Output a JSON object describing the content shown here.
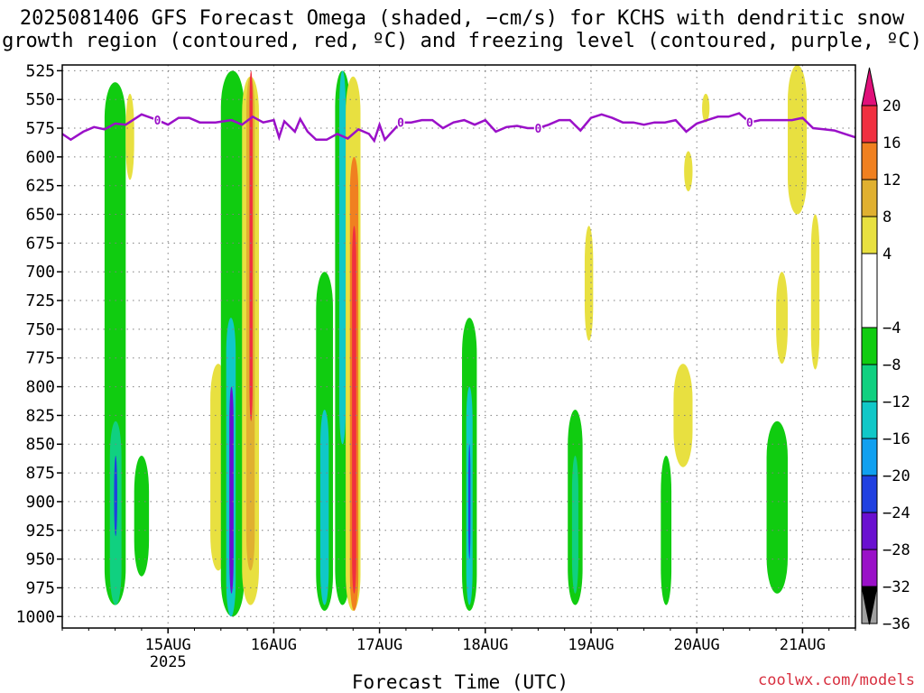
{
  "title": {
    "line1": "2025081406 GFS Forecast Omega (shaded, −cm/s) for KCHS with dendritic snow",
    "line2": "growth region (contoured, red, ºC) and freezing level (contoured, purple, ºC)"
  },
  "xlabel": "Forecast Time (UTC)",
  "credit": "coolwx.com/models",
  "colors": {
    "freezing_level": "#9a10c8",
    "ground": "#a0522d",
    "grid": "#808080"
  },
  "chart_data": {
    "type": "heatmap",
    "ylabel": "",
    "y_axis": {
      "ticks": [
        525,
        550,
        575,
        600,
        625,
        650,
        675,
        700,
        725,
        750,
        775,
        800,
        825,
        850,
        875,
        900,
        925,
        950,
        975,
        1000
      ],
      "range_hpa": [
        520,
        1010
      ],
      "inverted": true
    },
    "x_axis": {
      "range_days": [
        "2025-08-14 06Z",
        "2025-08-21 18Z"
      ],
      "ticks": [
        {
          "label": "15AUG",
          "sub": "2025",
          "t": 1.0
        },
        {
          "label": "16AUG",
          "sub": "",
          "t": 2.0
        },
        {
          "label": "17AUG",
          "sub": "",
          "t": 3.0
        },
        {
          "label": "18AUG",
          "sub": "",
          "t": 4.0
        },
        {
          "label": "19AUG",
          "sub": "",
          "t": 5.0
        },
        {
          "label": "20AUG",
          "sub": "",
          "t": 6.0
        },
        {
          "label": "21AUG",
          "sub": "",
          "t": 7.0
        }
      ],
      "t_min": 0.0,
      "t_max": 7.5
    },
    "grid": true,
    "colorbar": {
      "levels": [
        -36,
        -32,
        -28,
        -24,
        -20,
        -16,
        -12,
        -8,
        -4,
        4,
        8,
        12,
        16,
        20
      ],
      "label_levels": [
        20,
        16,
        12,
        8,
        4,
        -4,
        -8,
        -12,
        -16,
        -20,
        -24,
        -28,
        -32,
        -36
      ],
      "colors": [
        "#000000",
        "#a0a0a0",
        "#9a10c8",
        "#6a10d0",
        "#2040e0",
        "#10a0f0",
        "#10c8c8",
        "#10d080",
        "#10cc10",
        "#ffffff",
        "#e8e040",
        "#e0b030",
        "#f08020",
        "#f03040",
        "#e0107a"
      ]
    },
    "freezing_level_series": {
      "contour_label": "0",
      "t": [
        0.0,
        0.08,
        0.2,
        0.3,
        0.4,
        0.5,
        0.6,
        0.75,
        0.9,
        1.0,
        1.1,
        1.2,
        1.3,
        1.45,
        1.6,
        1.7,
        1.8,
        1.9,
        2.0,
        2.05,
        2.1,
        2.2,
        2.25,
        2.32,
        2.4,
        2.5,
        2.6,
        2.7,
        2.8,
        2.9,
        2.95,
        3.0,
        3.05,
        3.1,
        3.2,
        3.3,
        3.4,
        3.5,
        3.6,
        3.7,
        3.8,
        3.9,
        4.0,
        4.1,
        4.2,
        4.3,
        4.4,
        4.5,
        4.6,
        4.7,
        4.8,
        4.9,
        5.0,
        5.1,
        5.2,
        5.3,
        5.4,
        5.5,
        5.6,
        5.7,
        5.8,
        5.9,
        6.0,
        6.1,
        6.2,
        6.3,
        6.4,
        6.5,
        6.6,
        6.7,
        6.8,
        6.9,
        7.0,
        7.1,
        7.2,
        7.3,
        7.4,
        7.5
      ],
      "p": [
        580,
        585,
        578,
        574,
        576,
        571,
        572,
        563,
        568,
        572,
        566,
        566,
        570,
        570,
        568,
        572,
        565,
        570,
        568,
        583,
        569,
        578,
        567,
        578,
        585,
        585,
        580,
        584,
        576,
        580,
        586,
        572,
        585,
        580,
        570,
        570,
        568,
        568,
        575,
        570,
        568,
        572,
        568,
        578,
        574,
        573,
        575,
        575,
        572,
        568,
        568,
        577,
        566,
        563,
        566,
        570,
        570,
        572,
        570,
        570,
        568,
        578,
        571,
        568,
        565,
        565,
        562,
        570,
        568,
        568,
        568,
        568,
        566,
        575,
        576,
        577,
        580,
        583
      ]
    },
    "omega_cells": [
      {
        "t0": 0.4,
        "t1": 0.6,
        "p0": 535,
        "p1": 990,
        "value": -6
      },
      {
        "t0": 0.45,
        "t1": 0.56,
        "p0": 830,
        "p1": 990,
        "value": -12
      },
      {
        "t0": 0.49,
        "t1": 0.52,
        "p0": 860,
        "p1": 930,
        "value": -22
      },
      {
        "t0": 0.68,
        "t1": 0.82,
        "p0": 860,
        "p1": 965,
        "value": -6
      },
      {
        "t0": 0.6,
        "t1": 0.68,
        "p0": 545,
        "p1": 620,
        "value": 5
      },
      {
        "t0": 1.4,
        "t1": 1.55,
        "p0": 780,
        "p1": 960,
        "value": 5
      },
      {
        "t0": 1.5,
        "t1": 1.72,
        "p0": 525,
        "p1": 1000,
        "value": -8
      },
      {
        "t0": 1.55,
        "t1": 1.64,
        "p0": 740,
        "p1": 1000,
        "value": -14
      },
      {
        "t0": 1.58,
        "t1": 1.62,
        "p0": 800,
        "p1": 980,
        "value": -26
      },
      {
        "t0": 1.7,
        "t1": 1.86,
        "p0": 530,
        "p1": 990,
        "value": 5
      },
      {
        "t0": 1.74,
        "t1": 1.82,
        "p0": 530,
        "p1": 960,
        "value": 10
      },
      {
        "t0": 1.77,
        "t1": 1.8,
        "p0": 525,
        "p1": 830,
        "value": 17
      },
      {
        "t0": 2.4,
        "t1": 2.56,
        "p0": 700,
        "p1": 995,
        "value": -6
      },
      {
        "t0": 2.44,
        "t1": 2.52,
        "p0": 820,
        "p1": 990,
        "value": -14
      },
      {
        "t0": 2.58,
        "t1": 2.72,
        "p0": 525,
        "p1": 990,
        "value": -8
      },
      {
        "t0": 2.62,
        "t1": 2.68,
        "p0": 525,
        "p1": 850,
        "value": -14
      },
      {
        "t0": 2.68,
        "t1": 2.82,
        "p0": 530,
        "p1": 995,
        "value": 6
      },
      {
        "t0": 2.72,
        "t1": 2.8,
        "p0": 600,
        "p1": 995,
        "value": 13
      },
      {
        "t0": 2.74,
        "t1": 2.78,
        "p0": 660,
        "p1": 980,
        "value": 19
      },
      {
        "t0": 3.78,
        "t1": 3.92,
        "p0": 740,
        "p1": 995,
        "value": -6
      },
      {
        "t0": 3.82,
        "t1": 3.88,
        "p0": 800,
        "p1": 990,
        "value": -14
      },
      {
        "t0": 3.84,
        "t1": 3.86,
        "p0": 850,
        "p1": 950,
        "value": -22
      },
      {
        "t0": 4.78,
        "t1": 4.92,
        "p0": 820,
        "p1": 990,
        "value": -6
      },
      {
        "t0": 4.82,
        "t1": 4.88,
        "p0": 860,
        "p1": 980,
        "value": -12
      },
      {
        "t0": 4.94,
        "t1": 5.02,
        "p0": 660,
        "p1": 760,
        "value": 5
      },
      {
        "t0": 5.66,
        "t1": 5.76,
        "p0": 860,
        "p1": 990,
        "value": -6
      },
      {
        "t0": 5.78,
        "t1": 5.96,
        "p0": 780,
        "p1": 870,
        "value": 5
      },
      {
        "t0": 5.88,
        "t1": 5.96,
        "p0": 595,
        "p1": 630,
        "value": 5
      },
      {
        "t0": 6.05,
        "t1": 6.12,
        "p0": 545,
        "p1": 570,
        "value": 5
      },
      {
        "t0": 6.66,
        "t1": 6.86,
        "p0": 830,
        "p1": 980,
        "value": -6
      },
      {
        "t0": 6.75,
        "t1": 6.86,
        "p0": 700,
        "p1": 780,
        "value": 5
      },
      {
        "t0": 6.86,
        "t1": 7.04,
        "p0": 520,
        "p1": 650,
        "value": 5
      },
      {
        "t0": 7.08,
        "t1": 7.16,
        "p0": 650,
        "p1": 785,
        "value": 5
      }
    ]
  }
}
